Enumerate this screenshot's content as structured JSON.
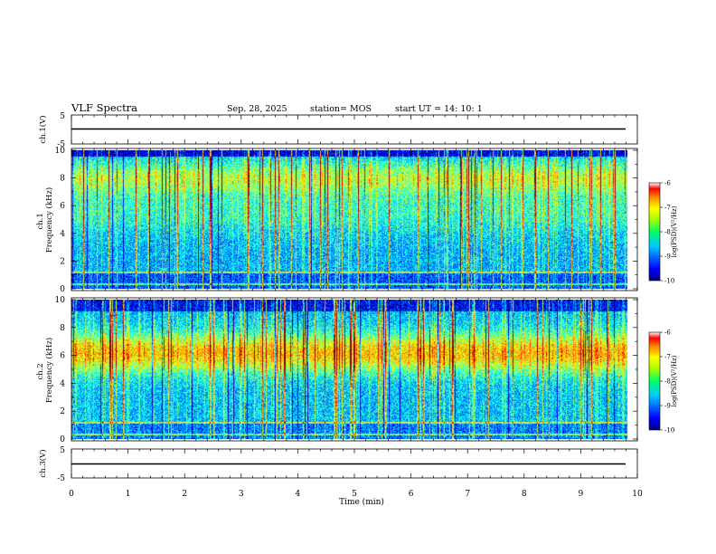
{
  "header": {
    "title": "VLF Spectra",
    "date": "Sep. 28, 2025",
    "station": "station= MOS",
    "start": "start  UT =   14: 10: 1"
  },
  "chart_data": [
    {
      "type": "line",
      "panel": "ch1-waveform",
      "ylabel": "ch.1(V)",
      "ylim": [
        -5,
        5
      ],
      "yticks": [
        "5",
        "-5"
      ],
      "level": 0
    },
    {
      "type": "heatmap",
      "panel": "ch1-spectrogram",
      "ylabel": "ch.1\nFrequency (kHz)",
      "ylim": [
        0,
        10
      ],
      "yticks": [
        "0",
        "2",
        "4",
        "6",
        "8",
        "10"
      ],
      "xlim": [
        0,
        10
      ],
      "colorbar": {
        "label": "log(PSD)(V²/Hz)",
        "range": [
          -10,
          -6
        ],
        "ticks": [
          "-6",
          "-7",
          "-8",
          "-9",
          "-10"
        ]
      }
    },
    {
      "type": "heatmap",
      "panel": "ch2-spectrogram",
      "ylabel": "ch.2\nFrequency (kHz)",
      "ylim": [
        0,
        10
      ],
      "yticks": [
        "0",
        "2",
        "4",
        "6",
        "8",
        "10"
      ],
      "xlim": [
        0,
        10
      ],
      "colorbar": {
        "label": "log(PSD)(V²/Hz)",
        "range": [
          -10,
          -6
        ],
        "ticks": [
          "-6",
          "-7",
          "-8",
          "-9",
          "-10"
        ]
      }
    },
    {
      "type": "line",
      "panel": "ch3-waveform",
      "ylabel": "ch.3(V)",
      "ylim": [
        -5,
        5
      ],
      "yticks": [
        "5",
        "-5"
      ],
      "level": 0
    }
  ],
  "xaxis": {
    "label": "Time  (min)",
    "range": [
      0,
      10
    ],
    "ticks": [
      "0",
      "1",
      "2",
      "3",
      "4",
      "5",
      "6",
      "7",
      "8",
      "9",
      "10"
    ],
    "data_end": 9.84
  }
}
